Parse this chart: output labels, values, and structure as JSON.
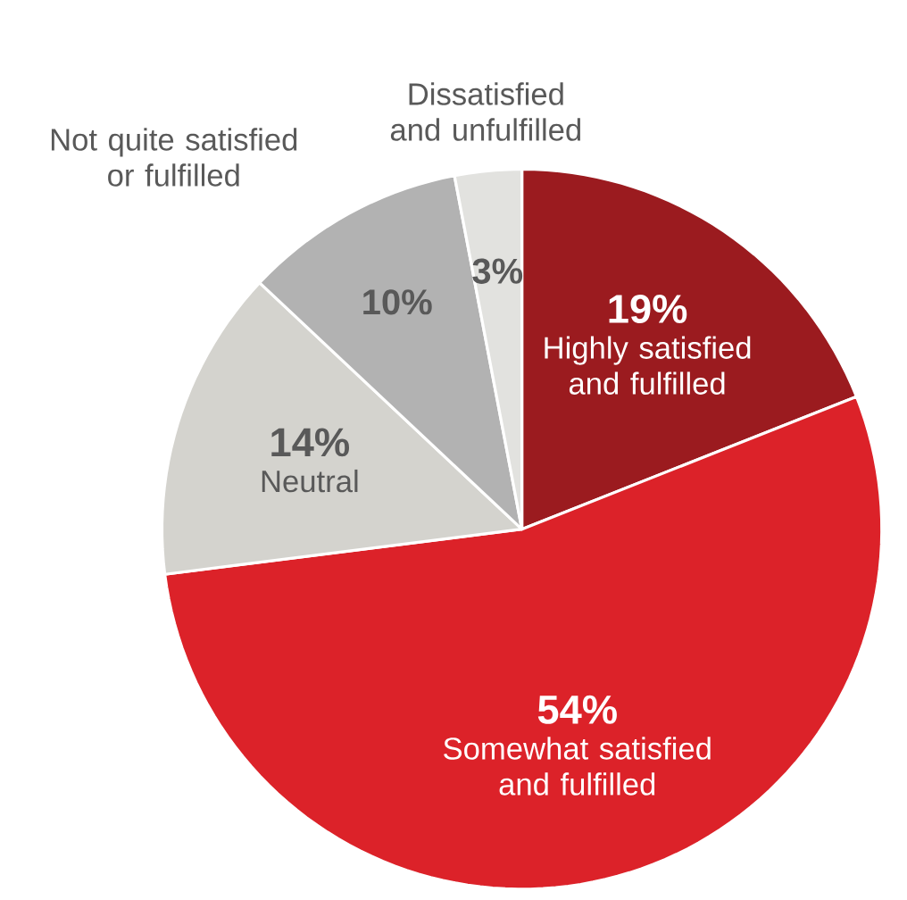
{
  "chart_data": {
    "type": "pie",
    "categories": [
      "Highly satisfied and fulfilled",
      "Somewhat satisfied and fulfilled",
      "Neutral",
      "Not quite satisfied or fulfilled",
      "Dissatisfied and unfulfilled"
    ],
    "values": [
      19,
      54,
      14,
      10,
      3
    ],
    "value_labels": [
      "19%",
      "54%",
      "14%",
      "10%",
      "3%"
    ],
    "colors": [
      "#9b1b1f",
      "#dc2229",
      "#d4d3ce",
      "#b2b2b2",
      "#e2e2df"
    ]
  }
}
